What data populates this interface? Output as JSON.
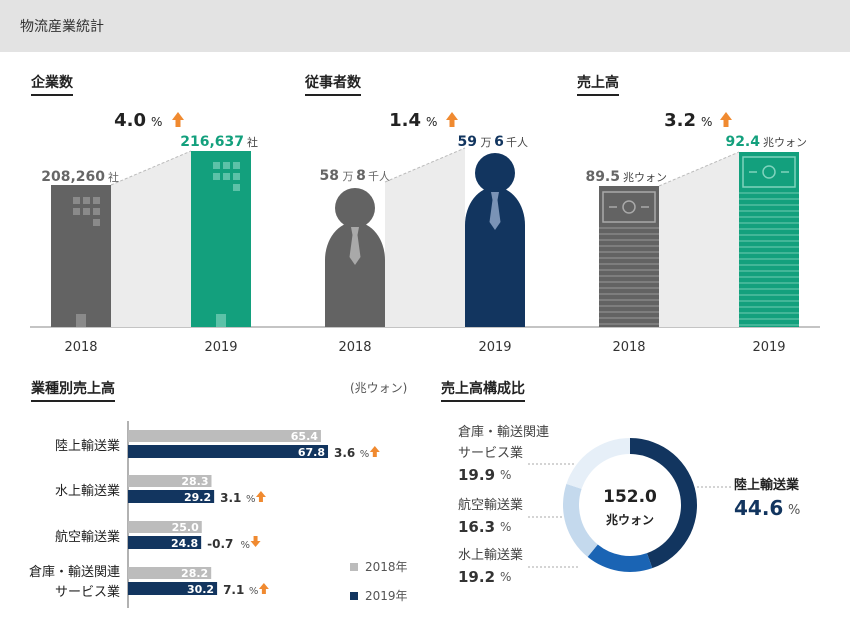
{
  "header": {
    "title": "物流産業統計"
  },
  "colors": {
    "gray": "#636363",
    "green": "#13a07d",
    "navy": "#12355f",
    "arrow_up": "#f08a30",
    "bar2018": "#bcbcbc"
  },
  "sections": {
    "companies": {
      "title": "企業数",
      "change": "4.0",
      "change_unit": "%",
      "y2018_value": "208,260",
      "y2018_unit": "社",
      "y2019_value": "216,637",
      "y2019_unit": "社",
      "year1": "2018",
      "year2": "2019"
    },
    "employees": {
      "title": "従事者数",
      "change": "1.4",
      "change_unit": "%",
      "y2018": [
        "58",
        "万",
        "8",
        "千人"
      ],
      "y2019": [
        "59",
        "万",
        "6",
        "千人"
      ],
      "year1": "2018",
      "year2": "2019"
    },
    "sales": {
      "title": "売上高",
      "change": "3.2",
      "change_unit": "%",
      "y2018_value": "89.5",
      "y2018_unit": "兆ウォン",
      "y2019_value": "92.4",
      "y2019_unit": "兆ウォン",
      "year1": "2018",
      "year2": "2019"
    }
  },
  "by_industry": {
    "title": "業種別売上高",
    "unit": "(兆ウォン)",
    "legend": [
      "2018年",
      "2019年"
    ]
  },
  "composition": {
    "title": "売上高構成比",
    "center_value": "152.0",
    "center_unit": "兆ウォン",
    "labels": [
      {
        "name": "陸上輸送業",
        "value": "44.6",
        "unit": "%"
      },
      {
        "name_line1": "倉庫・輸送関連",
        "name_line2": "サービス業",
        "value": "19.9",
        "unit": "%"
      },
      {
        "name": "航空輸送業",
        "value": "16.3",
        "unit": "%"
      },
      {
        "name": "水上輸送業",
        "value": "19.2",
        "unit": "%"
      }
    ]
  },
  "chart_data": [
    {
      "type": "bar",
      "title": "業種別売上高",
      "categories": [
        "陸上輸送業",
        "水上輸送業",
        "航空輸送業",
        "倉庫・輸送関連サービス業"
      ],
      "series": [
        {
          "name": "2018年",
          "values": [
            65.4,
            28.3,
            25.0,
            28.2
          ]
        },
        {
          "name": "2019年",
          "values": [
            67.8,
            29.2,
            24.8,
            30.2
          ]
        }
      ],
      "changes": [
        "3.6",
        "3.1",
        "-0.7",
        "7.1"
      ],
      "change_directions": [
        "up",
        "up",
        "down",
        "up"
      ],
      "change_unit": "%"
    },
    {
      "type": "pie",
      "title": "売上高構成比",
      "categories": [
        "陸上輸送業",
        "航空輸送業",
        "水上輸送業",
        "倉庫・輸送関連サービス業"
      ],
      "values": [
        44.6,
        16.3,
        19.2,
        19.9
      ],
      "colors": [
        "#12355f",
        "#1a64b4",
        "#c4d9ed",
        "#e6eff8"
      ]
    }
  ]
}
